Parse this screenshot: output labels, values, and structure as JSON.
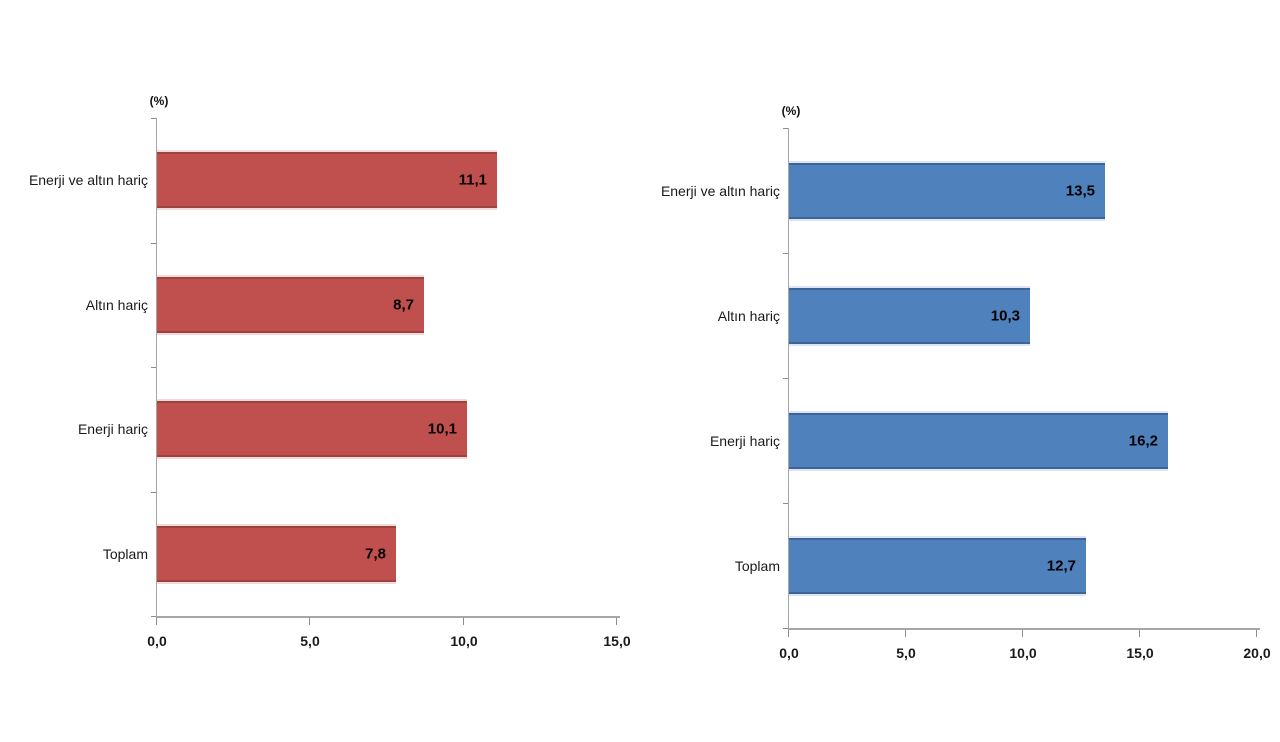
{
  "chart_data": [
    {
      "type": "bar",
      "orientation": "horizontal",
      "unit_label": "(%)",
      "categories": [
        "Enerji ve altın hariç",
        "Altın hariç",
        "Enerji hariç",
        "Toplam"
      ],
      "values": [
        11.1,
        8.7,
        10.1,
        7.8
      ],
      "value_labels": [
        "11,1",
        "8,7",
        "10,1",
        "7,8"
      ],
      "xlim": [
        0,
        15
      ],
      "xtick_values": [
        0,
        5,
        10,
        15
      ],
      "xtick_labels": [
        "0,0",
        "5,0",
        "10,0",
        "15,0"
      ],
      "grid": false,
      "legend_position": "none",
      "bar_color": "#C0504D",
      "bar_edge_color": "#9C4340",
      "bar_halo_color": "#F1DBDA",
      "axis_color": "#A6A6A6"
    },
    {
      "type": "bar",
      "orientation": "horizontal",
      "unit_label": "(%)",
      "categories": [
        "Enerji ve altın hariç",
        "Altın hariç",
        "Enerji hariç",
        "Toplam"
      ],
      "values": [
        13.5,
        10.3,
        16.2,
        12.7
      ],
      "value_labels": [
        "13,5",
        "10,3",
        "16,2",
        "12,7"
      ],
      "xlim": [
        0,
        20
      ],
      "xtick_values": [
        0,
        5,
        10,
        15,
        20
      ],
      "xtick_labels": [
        "0,0",
        "5,0",
        "10,0",
        "15,0",
        "20,0"
      ],
      "grid": false,
      "legend_position": "none",
      "bar_color": "#4F81BD",
      "bar_edge_color": "#3C6496",
      "bar_halo_color": "#DBE5F3",
      "axis_color": "#A6A6A6"
    }
  ]
}
